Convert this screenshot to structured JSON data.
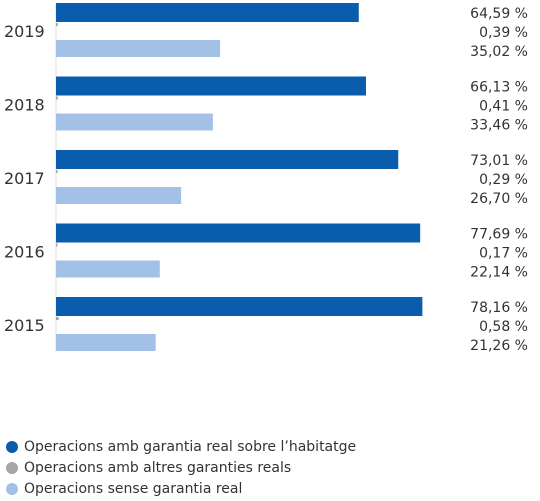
{
  "chart_data": {
    "type": "bar",
    "orientation": "horizontal",
    "categories": [
      "2019",
      "2018",
      "2017",
      "2016",
      "2015"
    ],
    "series": [
      {
        "name": "Operacions amb garantia real sobre l’habitatge",
        "color": "#0a5cad",
        "values": [
          64.59,
          66.13,
          73.01,
          77.69,
          78.16
        ],
        "labels": [
          "64,59 %",
          "66,13 %",
          "73,01 %",
          "77,69 %",
          "78,16 %"
        ]
      },
      {
        "name": "Operacions amb altres garanties reals",
        "color": "#a6a6a6",
        "values": [
          0.39,
          0.41,
          0.29,
          0.17,
          0.58
        ],
        "labels": [
          "0,39 %",
          "0,41 %",
          "0,29 %",
          "0,17 %",
          "0,58 %"
        ]
      },
      {
        "name": "Operacions sense garantia real",
        "color": "#a3c1e6",
        "values": [
          35.02,
          33.46,
          26.7,
          22.14,
          21.26
        ],
        "labels": [
          "35,02 %",
          "33,46 %",
          "26,70 %",
          "22,14 %",
          "21,26 %"
        ]
      }
    ],
    "xlim": [
      0,
      80
    ],
    "grid": false,
    "legend_position": "bottom-left"
  }
}
